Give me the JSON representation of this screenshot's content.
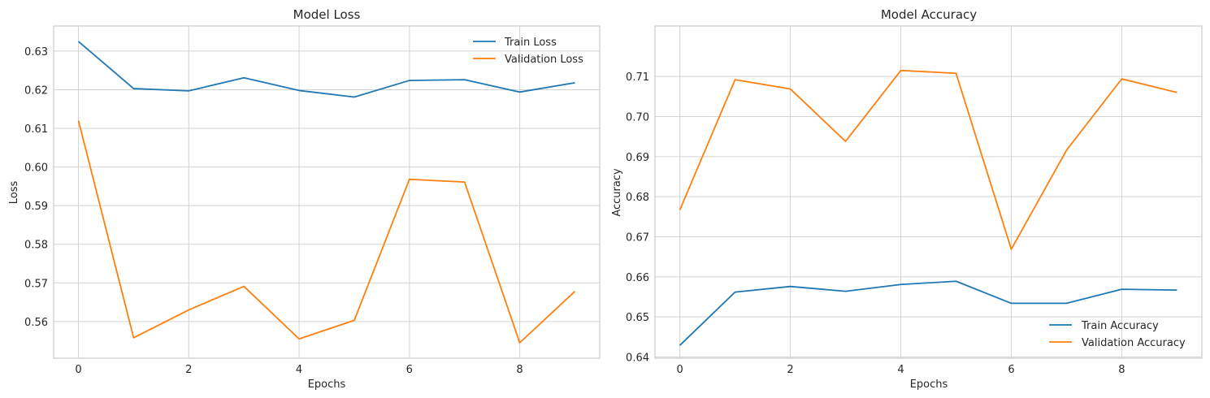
{
  "chart_data": [
    {
      "type": "line",
      "title": "Model Loss",
      "xlabel": "Epochs",
      "ylabel": "Loss",
      "x": [
        0,
        1,
        2,
        3,
        4,
        5,
        6,
        7,
        8,
        9
      ],
      "xlim": [
        -0.45,
        9.45
      ],
      "ylim": [
        0.5505,
        0.6365
      ],
      "xticks": [
        0,
        2,
        4,
        6,
        8
      ],
      "yticks": [
        0.56,
        0.57,
        0.58,
        0.59,
        0.6,
        0.61,
        0.62,
        0.63
      ],
      "ytick_labels": [
        "0.56",
        "0.57",
        "0.58",
        "0.59",
        "0.60",
        "0.61",
        "0.62",
        "0.63"
      ],
      "grid": true,
      "legend_position": "top-right",
      "series": [
        {
          "name": "Train Loss",
          "color": "#1f77b4",
          "values": [
            0.6325,
            0.6203,
            0.6197,
            0.6231,
            0.6198,
            0.6181,
            0.6224,
            0.6226,
            0.6194,
            0.6218
          ]
        },
        {
          "name": "Validation Loss",
          "color": "#ff7f0e",
          "values": [
            0.612,
            0.5558,
            0.563,
            0.5691,
            0.5555,
            0.5603,
            0.5968,
            0.5961,
            0.5545,
            0.5678
          ]
        }
      ]
    },
    {
      "type": "line",
      "title": "Model Accuracy",
      "xlabel": "Epochs",
      "ylabel": "Accuracy",
      "x": [
        0,
        1,
        2,
        3,
        4,
        5,
        6,
        7,
        8,
        9
      ],
      "xlim": [
        -0.45,
        9.45
      ],
      "ylim": [
        0.6397,
        0.7226
      ],
      "xticks": [
        0,
        2,
        4,
        6,
        8
      ],
      "yticks": [
        0.64,
        0.65,
        0.66,
        0.67,
        0.68,
        0.69,
        0.7,
        0.71
      ],
      "ytick_labels": [
        "0.64",
        "0.65",
        "0.66",
        "0.67",
        "0.68",
        "0.69",
        "0.70",
        "0.71"
      ],
      "grid": true,
      "legend_position": "lower-right",
      "series": [
        {
          "name": "Train Accuracy",
          "color": "#1f77b4",
          "values": [
            0.6429,
            0.6562,
            0.6576,
            0.6564,
            0.6581,
            0.6589,
            0.6534,
            0.6534,
            0.6569,
            0.6567
          ]
        },
        {
          "name": "Validation Accuracy",
          "color": "#ff7f0e",
          "values": [
            0.6767,
            0.7092,
            0.7069,
            0.6938,
            0.7115,
            0.7108,
            0.6669,
            0.6916,
            0.7094,
            0.706
          ]
        }
      ]
    }
  ]
}
